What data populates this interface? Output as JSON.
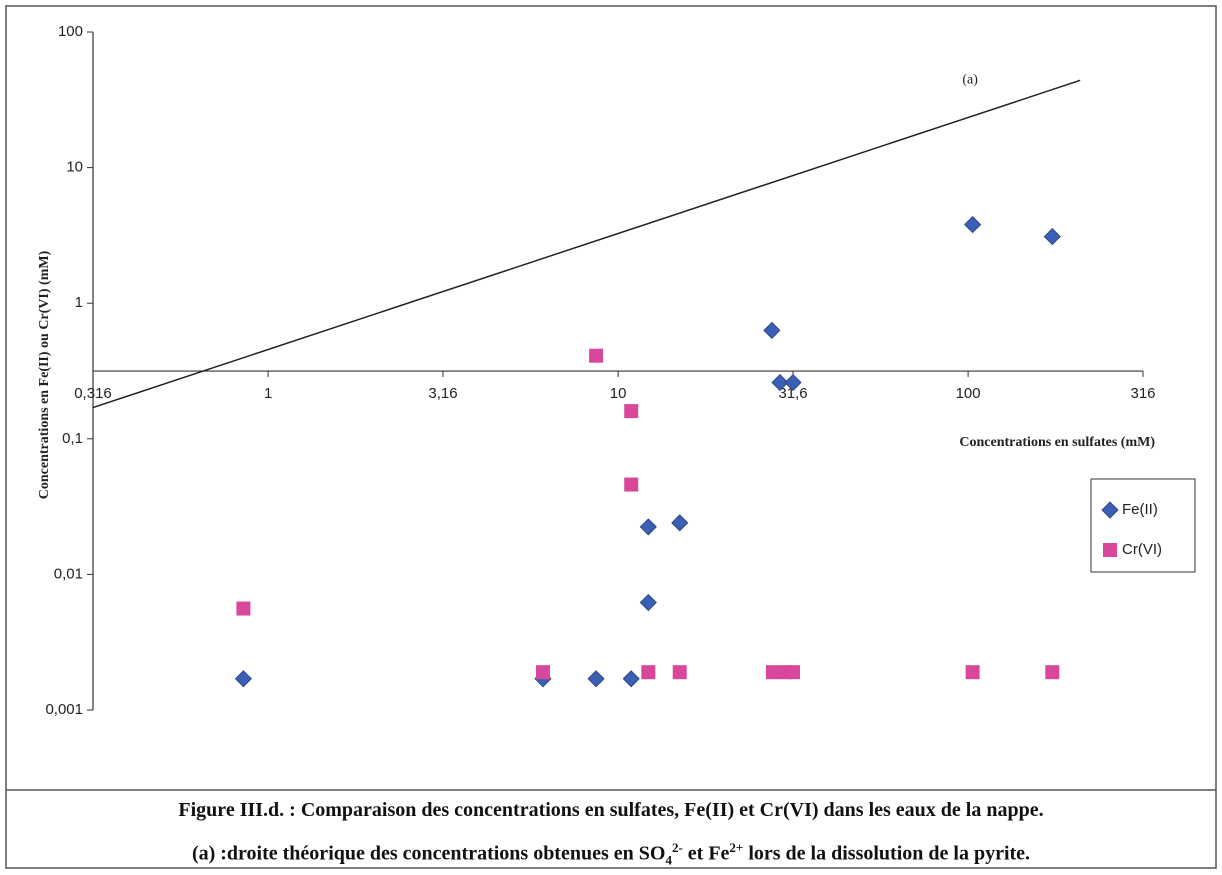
{
  "chart_data": {
    "type": "scatter",
    "xlabel": "Concentrations en sulfates (mM)",
    "ylabel": "Concentrations en Fe(II) ou Cr(VI) (mM)",
    "log_x": true,
    "log_y": true,
    "grid": false,
    "legend": "right",
    "xlim": [
      0.316,
      316
    ],
    "ylim": [
      0.001,
      100
    ],
    "xaxis_crosses_at": 0.316,
    "xticks": [
      {
        "value": 0.316,
        "label": "0,316"
      },
      1,
      {
        "value": 3.16,
        "label": "3,16"
      },
      10,
      {
        "value": 31.6,
        "label": "31,6"
      },
      100,
      316
    ],
    "yticks": [
      {
        "value": 0.001,
        "label": "0,001"
      },
      {
        "value": 0.01,
        "label": "0,01"
      },
      {
        "value": 0.1,
        "label": "0,1"
      },
      1,
      10,
      100
    ],
    "series": [
      {
        "name": "Fe(II)",
        "color": "#3a5fb4",
        "marker": "diamond",
        "x": [
          0.85,
          6.1,
          8.65,
          10.9,
          12.2,
          12.2,
          15.0,
          27.5,
          29.0,
          31.6,
          103,
          174
        ],
        "values": [
          0.0017,
          0.0017,
          0.0017,
          0.0017,
          0.0062,
          0.0224,
          0.024,
          0.63,
          0.26,
          0.26,
          3.8,
          3.1
        ]
      },
      {
        "name": "Cr(VI)",
        "color": "#d9479c",
        "marker": "square",
        "x": [
          0.85,
          6.1,
          8.65,
          10.9,
          10.9,
          12.2,
          15.0,
          27.7,
          30.0,
          31.6,
          103,
          174
        ],
        "values": [
          0.0056,
          0.0019,
          0.41,
          0.16,
          0.046,
          0.0019,
          0.0019,
          0.0019,
          0.0019,
          0.0019,
          0.0019,
          0.0019
        ]
      }
    ],
    "lines": [
      {
        "label": "(a)",
        "color": "#222",
        "x": [
          0.316,
          209
        ],
        "values": [
          0.17,
          44
        ]
      }
    ],
    "caption": [
      "Figure III.d. : Comparaison des concentrations en sulfates, Fe(II) et Cr(VI) dans les eaux de la nappe.",
      [
        "(a) :droite théorique des concentrations obtenues en SO",
        "4",
        "2-",
        " et Fe",
        "2+",
        " lors de la dissolution de la pyrite."
      ]
    ]
  }
}
